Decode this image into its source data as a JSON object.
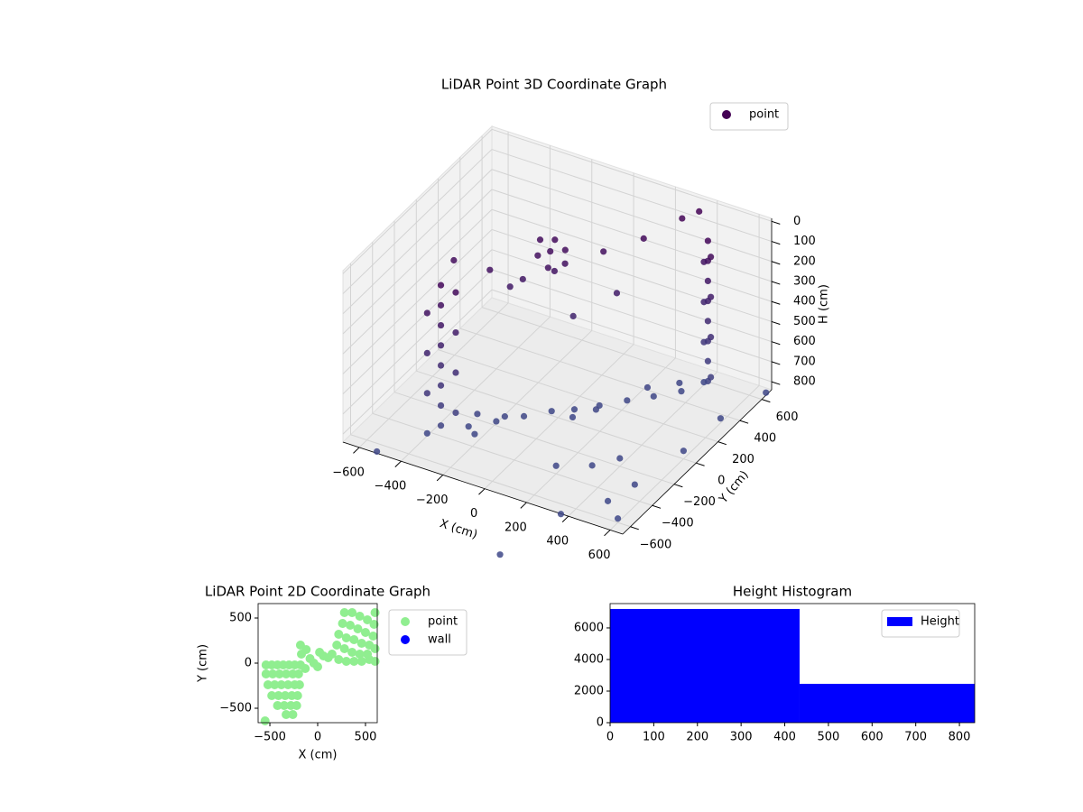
{
  "chart_data": [
    {
      "type": "scatter3d",
      "title": "LiDAR Point 3D Coordinate Graph",
      "x_label": "X (cm)",
      "y_label": "Y (cm)",
      "z_label": "H (cm)",
      "legend": "upper right",
      "z_inverted": true,
      "cmap": [
        "#440154",
        "#3e4a89"
      ],
      "xlim": [
        -678,
        660
      ],
      "ylim": [
        -670,
        690
      ],
      "zlim": [
        -15,
        840
      ],
      "xticks": [
        {
          "value": -600,
          "label": "−600"
        },
        {
          "value": -400,
          "label": "−400"
        },
        {
          "value": -200,
          "label": "−200"
        },
        0,
        200,
        400,
        600
      ],
      "yticks": [
        {
          "value": -600,
          "label": "−600"
        },
        {
          "value": -400,
          "label": "−400"
        },
        {
          "value": -200,
          "label": "−200"
        },
        0,
        200,
        400,
        600
      ],
      "zticks": [
        0,
        100,
        200,
        300,
        400,
        500,
        600,
        700,
        800
      ],
      "series": [
        {
          "name": "point",
          "color": "#440154",
          "x": [
            -330,
            -330,
            -330,
            -330,
            -330,
            -330,
            -330,
            -330,
            -280,
            -280,
            -280,
            -280,
            -380,
            -380,
            -380,
            -380,
            460,
            460,
            460,
            460,
            460,
            460,
            460,
            460,
            500,
            500,
            500,
            500,
            420,
            420,
            420,
            420,
            -250,
            -170,
            -90,
            -10,
            65,
            140,
            220,
            300,
            380,
            -250,
            -150,
            150,
            260,
            350,
            -200,
            80,
            -116,
            -60,
            -160,
            -100,
            -40,
            -180,
            -120,
            -80,
            -200,
            -240,
            -420,
            -300,
            60,
            200,
            300,
            150,
            20,
            350,
            200,
            320,
            400,
            500,
            312,
            550,
            600,
            620,
            -500,
            380,
            680,
            600
          ],
          "y": [
            -440,
            -440,
            -440,
            -440,
            -440,
            -440,
            -440,
            -440,
            -400,
            -400,
            -400,
            -400,
            -470,
            -470,
            -470,
            -470,
            490,
            490,
            490,
            490,
            490,
            490,
            490,
            490,
            440,
            440,
            440,
            440,
            530,
            530,
            530,
            530,
            -340,
            -240,
            -140,
            -40,
            25,
            110,
            210,
            300,
            400,
            -260,
            -200,
            60,
            320,
            440,
            -380,
            -20,
            150,
            180,
            120,
            100,
            140,
            180,
            200,
            120,
            60,
            20,
            -150,
            -50,
            300,
            400,
            560,
            250,
            100,
            620,
            -400,
            -300,
            -200,
            -500,
            -1126,
            -350,
            0,
            300,
            -700,
            -700,
            600,
            -600
          ],
          "z": [
            60,
            160,
            260,
            360,
            460,
            560,
            660,
            760,
            100,
            300,
            500,
            700,
            200,
            400,
            600,
            800,
            60,
            160,
            260,
            360,
            460,
            560,
            660,
            760,
            100,
            300,
            500,
            700,
            200,
            400,
            600,
            800,
            790,
            790,
            790,
            790,
            790,
            790,
            790,
            790,
            790,
            770,
            780,
            780,
            770,
            780,
            790,
            800,
            130,
            120,
            150,
            180,
            160,
            110,
            100,
            200,
            250,
            280,
            120,
            180,
            150,
            90,
            40,
            300,
            380,
            20,
            800,
            810,
            800,
            820,
            820,
            800,
            800,
            790,
            810,
            820,
            800,
            820
          ]
        }
      ]
    },
    {
      "type": "scatter",
      "title": "LiDAR Point 2D Coordinate Graph",
      "x_label": "X (cm)",
      "y_label": "Y (cm)",
      "legend": "outside right",
      "xlim": [
        -623,
        623
      ],
      "ylim": [
        -660,
        660
      ],
      "xticks": [
        {
          "value": -500,
          "label": "−500"
        },
        0,
        500
      ],
      "yticks": [
        {
          "value": -500,
          "label": "−500"
        },
        0,
        500
      ],
      "series": [
        {
          "name": "point",
          "color": "#90ee90",
          "x": [
            -540,
            -480,
            -420,
            -360,
            -300,
            -240,
            -180,
            -540,
            -470,
            -400,
            -330,
            -260,
            -200,
            -520,
            -450,
            -380,
            -310,
            -240,
            -190,
            -480,
            -410,
            -340,
            -270,
            -210,
            -420,
            -350,
            -280,
            -220,
            -330,
            -260,
            -550,
            -170,
            -120,
            -180,
            -80,
            -40,
            0,
            20,
            60,
            110,
            -130,
            150,
            220,
            300,
            380,
            460,
            540,
            600,
            200,
            280,
            360,
            440,
            520,
            220,
            300,
            380,
            460,
            540,
            600,
            260,
            340,
            420,
            500,
            580,
            280,
            360,
            440,
            520,
            590,
            600
          ],
          "y": [
            -20,
            -20,
            -20,
            -20,
            -20,
            -20,
            -20,
            -120,
            -120,
            -120,
            -120,
            -120,
            -120,
            -240,
            -240,
            -240,
            -240,
            -240,
            -240,
            -360,
            -360,
            -360,
            -360,
            -360,
            -470,
            -470,
            -470,
            -470,
            -570,
            -570,
            -640,
            100,
            150,
            200,
            50,
            0,
            -40,
            120,
            80,
            60,
            -60,
            100,
            40,
            20,
            20,
            20,
            40,
            20,
            200,
            160,
            120,
            100,
            100,
            320,
            280,
            260,
            220,
            200,
            160,
            440,
            420,
            380,
            340,
            300,
            560,
            560,
            520,
            480,
            430,
            560
          ]
        },
        {
          "name": "wall",
          "color": "#0000ff",
          "x": [],
          "y": []
        }
      ]
    },
    {
      "type": "histogram",
      "title": "Height Histogram",
      "legend": "upper right",
      "xlim": [
        0,
        835
      ],
      "ylim": [
        0,
        7540
      ],
      "xticks": [
        0,
        100,
        200,
        300,
        400,
        500,
        600,
        700,
        800
      ],
      "yticks": [
        0,
        2000,
        4000,
        6000
      ],
      "series": [
        {
          "name": "Height",
          "color": "#0000ff",
          "bins": [
            0,
            434,
            835
          ],
          "counts": [
            7200,
            2460
          ]
        }
      ]
    }
  ]
}
